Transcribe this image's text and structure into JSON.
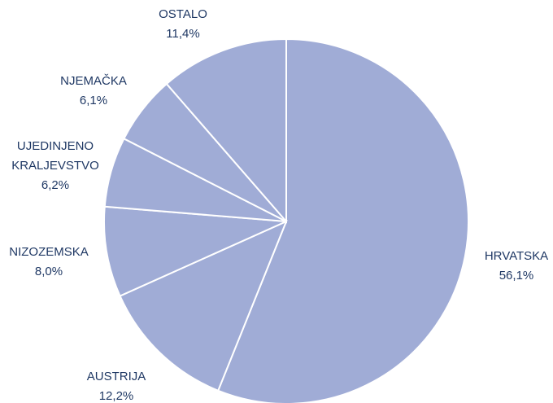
{
  "chart_data": {
    "type": "pie",
    "categories": [
      "HRVATSKA",
      "AUSTRIJA",
      "NIZOZEMSKA",
      "UJEDINJENO KRALJEVSTVO",
      "NJEMAČKA",
      "OSTALO"
    ],
    "values": [
      56.1,
      12.2,
      8.0,
      6.2,
      6.1,
      11.4
    ],
    "value_labels": [
      "56,1%",
      "12,2%",
      "8,0%",
      "6,2%",
      "6,1%",
      "11,4%"
    ],
    "color": "#a0acd6"
  }
}
